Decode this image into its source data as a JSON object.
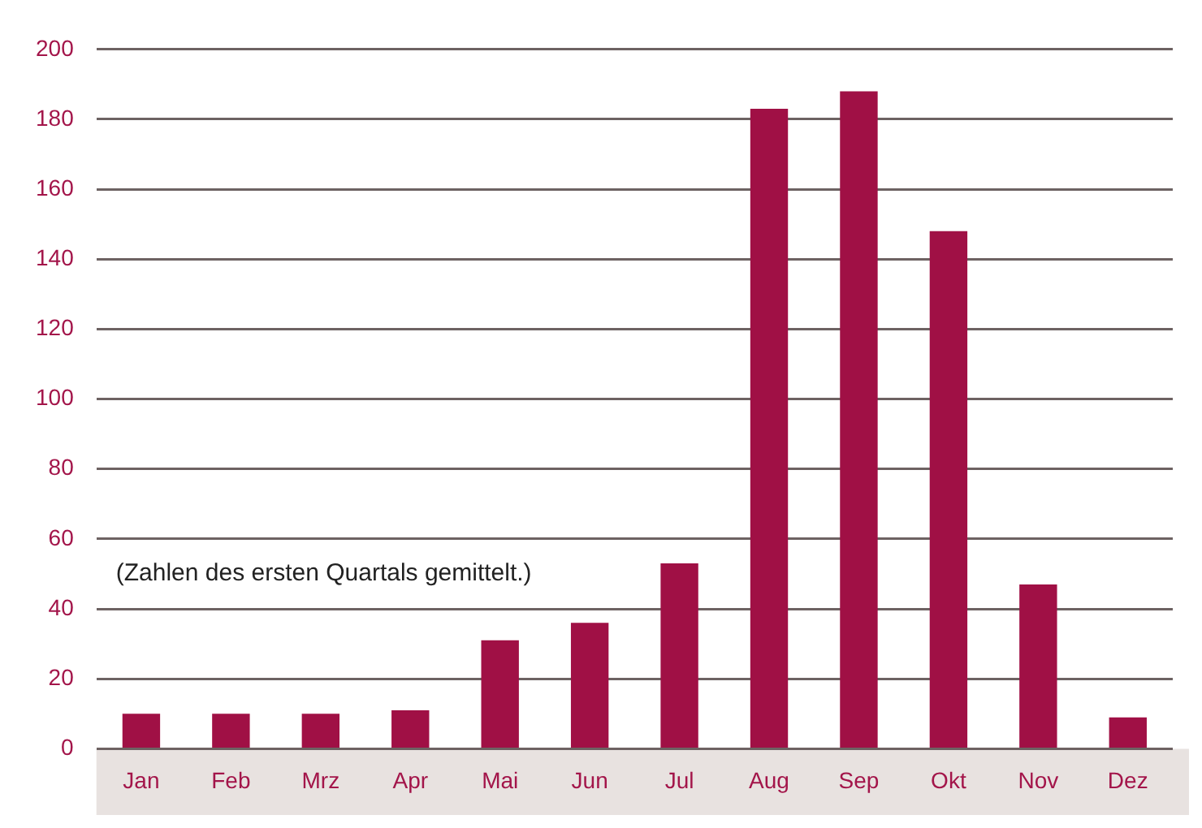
{
  "chart_data": {
    "type": "bar",
    "categories": [
      "Jan",
      "Feb",
      "Mrz",
      "Apr",
      "Mai",
      "Jun",
      "Jul",
      "Aug",
      "Sep",
      "Okt",
      "Nov",
      "Dez"
    ],
    "values": [
      10,
      10,
      10,
      11,
      31,
      36,
      53,
      183,
      188,
      148,
      47,
      9
    ],
    "color": "#a01045",
    "ylim": [
      0,
      200
    ],
    "yticks": [
      0,
      20,
      40,
      60,
      80,
      100,
      120,
      140,
      160,
      180,
      200
    ],
    "grid": "y",
    "annotations": [
      "(Zahlen des ersten Quartals gemittelt.)"
    ]
  }
}
